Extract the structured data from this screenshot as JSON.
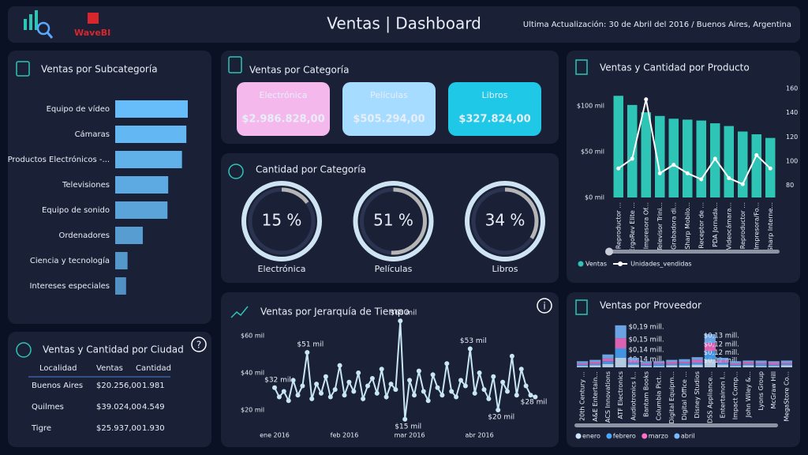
{
  "header": {
    "title": "Ventas | Dashboard",
    "brand": "WaveBI",
    "update": "Ultima Actualización: 30 de Abril del 2016 / Buenos Aires, Argentina"
  },
  "icons": {
    "help": "?",
    "info": "i"
  },
  "kpi_panel": {
    "title": "Ventas por Categoría",
    "cards": [
      {
        "label": "Electrónica",
        "value": "$2.986.828,00",
        "color": "#f4b8ec"
      },
      {
        "label": "Películas",
        "value": "$505.294,00",
        "color": "#a6dcff"
      },
      {
        "label": "Libros",
        "value": "$327.824,00",
        "color": "#1ec8e6"
      }
    ]
  },
  "city_table": {
    "title": "Ventas y Cantidad por Ciudad",
    "columns": [
      "Localidad",
      "Ventas",
      "Cantidad"
    ],
    "rows": [
      [
        "Buenos Aires",
        "$20.256,00",
        "1.981"
      ],
      [
        "Quilmes",
        "$39.024,00",
        "4.549"
      ],
      [
        "Tigre",
        "$25.937,00",
        "1.930"
      ]
    ]
  },
  "chart_data": [
    {
      "type": "hbar",
      "title": "Ventas por Subcategoría",
      "categories": [
        "Equipo de vídeo",
        "Cámaras",
        "Productos Electrónicos -...",
        "Televisiones",
        "Equipo de sonido",
        "Ordenadores",
        "Ciencia y tecnología",
        "Intereses especiales"
      ],
      "values": [
        100,
        98,
        92,
        73,
        72,
        38,
        17,
        15
      ],
      "xlim": [
        0,
        100
      ],
      "color": "#66bdfa"
    },
    {
      "type": "donut",
      "title": "Cantidad por Categoría",
      "categories": [
        "Electrónica",
        "Películas",
        "Libros"
      ],
      "values": [
        15,
        51,
        34
      ],
      "value_labels": [
        "15 %",
        "51 %",
        "34 %"
      ],
      "ylim": [
        0,
        100
      ],
      "color": "#b5b5b5"
    },
    {
      "type": "combo",
      "title": "Ventas y Cantidad por Producto",
      "categories": [
        "Reproductor ...",
        "ErgoRev Elite ...",
        "Impresora Of...",
        "Televisor Trini...",
        "Grabadora di...",
        "Sharp Mobilo...",
        "Receptor de ...",
        "PDA Jornada...",
        "Videocámara...",
        "Reproductor ...",
        "Impresora/Fo...",
        "Sharp Interne..."
      ],
      "series": [
        {
          "name": "Ventas",
          "color": "#2ec4b6",
          "values": [
            111,
            101,
            93,
            89,
            86,
            85,
            84,
            81,
            78,
            72,
            69,
            65
          ]
        },
        {
          "name": "Unidades_vendidas",
          "color": "#ffffff",
          "axis": "y2",
          "values": [
            94,
            102,
            151,
            90,
            97,
            90,
            85,
            102,
            86,
            81,
            105,
            94
          ]
        }
      ],
      "ylim": [
        0,
        119
      ],
      "yticks": [
        {
          "value": 0,
          "label": "$0 mil"
        },
        {
          "value": 50,
          "label": "$50 mil"
        },
        {
          "value": 100,
          "label": "$100 mil"
        }
      ],
      "y2lim": [
        70,
        160
      ],
      "y2ticks": [
        80,
        100,
        120,
        140,
        160
      ]
    },
    {
      "type": "line",
      "title": "Ventas por Jerarquía de Tiempo",
      "categories": [
        "ene 2016",
        null,
        null,
        null,
        null,
        null,
        null,
        null,
        null,
        null,
        null,
        null,
        null,
        null,
        null,
        "feb 2016",
        null,
        null,
        null,
        null,
        null,
        null,
        null,
        null,
        null,
        null,
        null,
        null,
        null,
        "mar 2016",
        null,
        null,
        null,
        null,
        null,
        null,
        null,
        null,
        null,
        null,
        null,
        null,
        null,
        null,
        "abr 2016",
        null,
        null,
        null,
        null,
        null,
        null,
        null,
        null,
        null,
        null,
        null,
        null
      ],
      "values": [
        32,
        27,
        30,
        25,
        36,
        28,
        33,
        51,
        26,
        34,
        29,
        38,
        27,
        31,
        44,
        28,
        35,
        30,
        40,
        26,
        33,
        37,
        29,
        42,
        27,
        34,
        31,
        68,
        15,
        36,
        28,
        41,
        30,
        25,
        39,
        32,
        28,
        45,
        30,
        27,
        36,
        33,
        53,
        29,
        40,
        31,
        26,
        38,
        20,
        35,
        30,
        49,
        28,
        42,
        33,
        28,
        27
      ],
      "value_labels": [
        "$32 mil",
        null,
        null,
        null,
        null,
        null,
        null,
        "$51 mil",
        null,
        null,
        null,
        null,
        null,
        null,
        null,
        null,
        null,
        null,
        null,
        null,
        null,
        null,
        null,
        null,
        null,
        null,
        null,
        "$68 mil",
        "$15 mil",
        null,
        null,
        null,
        null,
        null,
        null,
        null,
        null,
        null,
        null,
        null,
        null,
        null,
        "$53 mil",
        null,
        null,
        null,
        null,
        null,
        "$20 mil",
        null,
        null,
        null,
        null,
        null,
        null,
        "$28 mil",
        null
      ],
      "ylim": [
        10,
        70
      ],
      "yticks": [
        {
          "value": 20,
          "label": "$20 mil"
        },
        {
          "value": 40,
          "label": "$40 mil"
        },
        {
          "value": 60,
          "label": "$60 mil"
        }
      ],
      "color": "#c8e6f5"
    },
    {
      "type": "ribbon",
      "title": "Ventas por Proveedor",
      "categories": [
        "20th Century ...",
        "A&E Entertain...",
        "ACS Innovations",
        "ATF Electronics",
        "Audiotronics I...",
        "Bantam Books",
        "Columbia Pict...",
        "Digital Equipm...",
        "Digital Office ...",
        "Disney Studios",
        "DSS Appliance...",
        "Entertainon I...",
        "Impact Comp...",
        "John Wiley &...",
        "Lyons Group",
        "McGraw Hill",
        "MegaStore Co..."
      ],
      "series": [
        {
          "name": "enero",
          "color": "#cfe8ff",
          "values": [
            0.02,
            0.03,
            0.05,
            0.14,
            0.04,
            0.02,
            0.02,
            0.03,
            0.03,
            0.04,
            0.12,
            0.04,
            0.02,
            0.03,
            0.02,
            0.02,
            0.03
          ],
          "value_labels": [
            null,
            null,
            null,
            "$0,14 mill.",
            null,
            null,
            null,
            null,
            null,
            null,
            "$0,12 mill.",
            null,
            null,
            null,
            null,
            null,
            null
          ]
        },
        {
          "name": "febrero",
          "color": "#4aa8ff",
          "values": [
            0.02,
            0.02,
            0.04,
            0.14,
            0.03,
            0.02,
            0.03,
            0.02,
            0.03,
            0.03,
            0.12,
            0.03,
            0.02,
            0.02,
            0.03,
            0.02,
            0.02
          ],
          "value_labels": [
            null,
            null,
            null,
            "$0,14 mill.",
            null,
            null,
            null,
            null,
            null,
            null,
            "$0,12 mill.",
            null,
            null,
            null,
            null,
            null,
            null
          ]
        },
        {
          "name": "marzo",
          "color": "#ff6ec7",
          "values": [
            0.02,
            0.03,
            0.04,
            0.15,
            0.03,
            0.02,
            0.02,
            0.03,
            0.02,
            0.04,
            0.12,
            0.03,
            0.02,
            0.03,
            0.02,
            0.03,
            0.02
          ],
          "value_labels": [
            null,
            null,
            null,
            "$0,15 mill.",
            null,
            null,
            null,
            null,
            null,
            null,
            "$0,12 mill.",
            null,
            null,
            null,
            null,
            null,
            null
          ]
        },
        {
          "name": "abril",
          "color": "#7ab8ff",
          "values": [
            0.03,
            0.03,
            0.06,
            0.19,
            0.04,
            0.03,
            0.02,
            0.03,
            0.04,
            0.04,
            0.13,
            0.04,
            0.03,
            0.02,
            0.03,
            0.02,
            0.03
          ],
          "value_labels": [
            null,
            null,
            null,
            "$0,19 mill.",
            null,
            null,
            null,
            null,
            null,
            null,
            "$0,13 mill.",
            null,
            null,
            null,
            null,
            null,
            null
          ]
        }
      ],
      "ylim": [
        0,
        0.7
      ]
    }
  ]
}
